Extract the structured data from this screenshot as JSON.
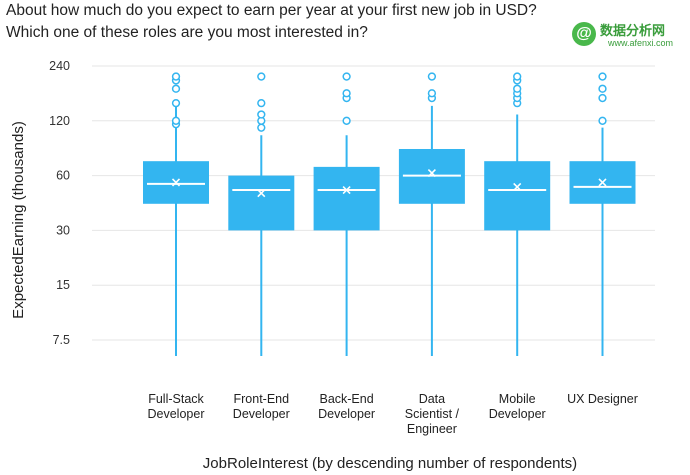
{
  "title_line1": "About how much do you expect to earn per year at your first new job in USD?",
  "title_line2": "Which one of these roles are you most interested in?",
  "watermark": {
    "symbol": "@",
    "text": "数据分析网",
    "url": "www.afenxi.com",
    "color": "#49b84b"
  },
  "chart_data": {
    "type": "boxplot",
    "xlabel": "JobRoleInterest (by descending number of respondents)",
    "ylabel": "ExpectedEarning (thousands)",
    "y_scale": "log",
    "ylim": [
      5.5,
      270
    ],
    "y_ticks": [
      7.5,
      15,
      30,
      60,
      120,
      240
    ],
    "y_tick_labels": [
      "7.5",
      "15",
      "30",
      "60",
      "120",
      "240"
    ],
    "grid": "horizontal",
    "color": "#33b5f0",
    "categories": [
      [
        "Full-Stack",
        "Developer"
      ],
      [
        "Front-End",
        "Developer"
      ],
      [
        "Back-End",
        "Developer"
      ],
      [
        "Data",
        "Scientist /",
        "Engineer"
      ],
      [
        "Mobile",
        "Developer"
      ],
      [
        "UX Designer"
      ]
    ],
    "boxes": [
      {
        "whisker_low": 6,
        "q1": 42,
        "median": 54,
        "q3": 72,
        "whisker_high": 150,
        "mean": 55,
        "outliers": [
          115,
          120,
          150,
          180,
          200,
          210
        ]
      },
      {
        "whisker_low": 6,
        "q1": 30,
        "median": 50,
        "q3": 60,
        "whisker_high": 100,
        "mean": 48,
        "outliers": [
          110,
          120,
          130,
          150,
          210
        ]
      },
      {
        "whisker_low": 6,
        "q1": 30,
        "median": 50,
        "q3": 67,
        "whisker_high": 100,
        "mean": 50,
        "outliers": [
          120,
          160,
          170,
          210
        ]
      },
      {
        "whisker_low": 6,
        "q1": 42,
        "median": 60,
        "q3": 84,
        "whisker_high": 145,
        "mean": 62,
        "outliers": [
          160,
          170,
          210
        ]
      },
      {
        "whisker_low": 6,
        "q1": 30,
        "median": 50,
        "q3": 72,
        "whisker_high": 130,
        "mean": 52,
        "outliers": [
          150,
          160,
          170,
          180,
          200,
          210
        ]
      },
      {
        "whisker_low": 6,
        "q1": 42,
        "median": 52,
        "q3": 72,
        "whisker_high": 110,
        "mean": 55,
        "outliers": [
          120,
          160,
          180,
          210
        ]
      }
    ]
  }
}
